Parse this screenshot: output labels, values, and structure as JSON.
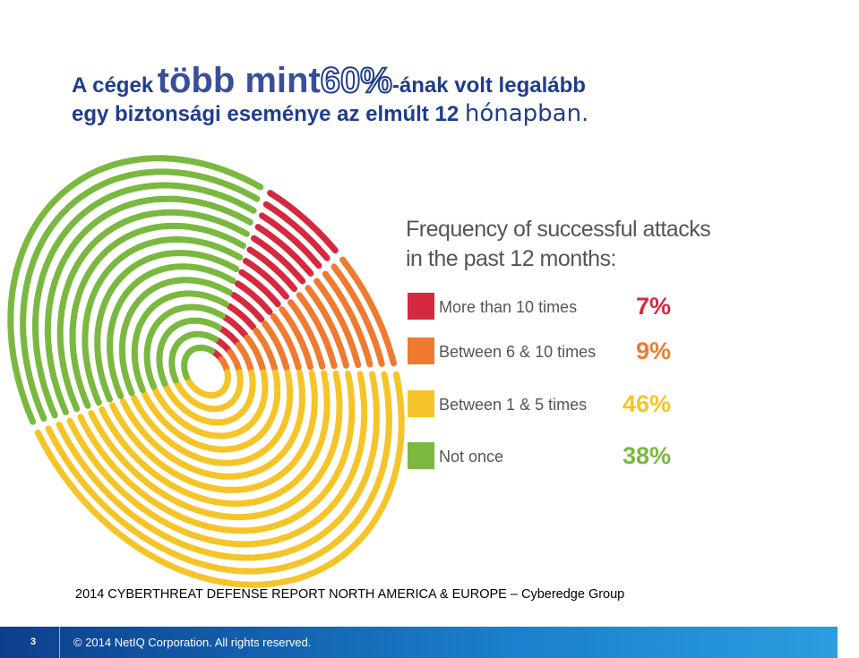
{
  "headline": [
    "A cégek",
    "több mint",
    "60%",
    "-ának volt legalább",
    "egy biztonsági eseménye az elmúlt 12",
    "hónapban."
  ],
  "chart_data": {
    "type": "pie",
    "title": "Frequency of successful attacks in the past 12 months:",
    "categories": [
      "More than 10 times",
      "Between 6 & 10 times",
      "Between 1 & 5 times",
      "Not once"
    ],
    "values": [
      7,
      9,
      46,
      38
    ],
    "value_labels": [
      "7%",
      "9%",
      "46%",
      "38%"
    ],
    "colors": [
      "#d4293f",
      "#ee7b30",
      "#f5c428",
      "#7ab840"
    ]
  },
  "source": "2014 CYBERTHREAT DEFENSE REPORT NORTH AMERICA & EUROPE – Cyberedge Group",
  "footer": {
    "page": "3",
    "copyright": "© 2014 NetIQ Corporation. All rights reserved."
  }
}
